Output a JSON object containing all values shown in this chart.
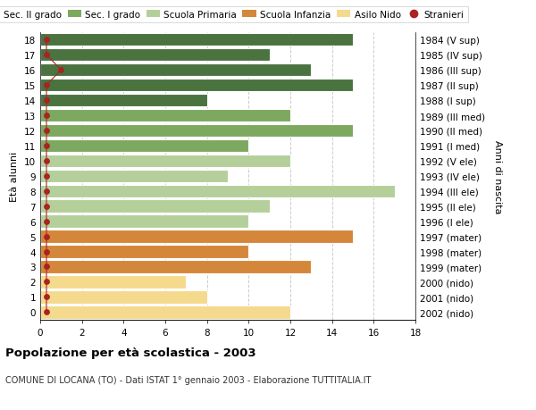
{
  "ages": [
    18,
    17,
    16,
    15,
    14,
    13,
    12,
    11,
    10,
    9,
    8,
    7,
    6,
    5,
    4,
    3,
    2,
    1,
    0
  ],
  "values": [
    15,
    11,
    13,
    15,
    8,
    12,
    15,
    10,
    12,
    9,
    17,
    11,
    10,
    15,
    10,
    13,
    7,
    8,
    12
  ],
  "right_labels": [
    "1984 (V sup)",
    "1985 (IV sup)",
    "1986 (III sup)",
    "1987 (II sup)",
    "1988 (I sup)",
    "1989 (III med)",
    "1990 (II med)",
    "1991 (I med)",
    "1992 (V ele)",
    "1993 (IV ele)",
    "1994 (III ele)",
    "1995 (II ele)",
    "1996 (I ele)",
    "1997 (mater)",
    "1998 (mater)",
    "1999 (mater)",
    "2000 (nido)",
    "2001 (nido)",
    "2002 (nido)"
  ],
  "bar_colors": [
    "#4a7340",
    "#4a7340",
    "#4a7340",
    "#4a7340",
    "#4a7340",
    "#7da860",
    "#7da860",
    "#7da860",
    "#b5cf9a",
    "#b5cf9a",
    "#b5cf9a",
    "#b5cf9a",
    "#b5cf9a",
    "#d4873a",
    "#d4873a",
    "#d4873a",
    "#f5d98c",
    "#f5d98c",
    "#f5d98c"
  ],
  "stranieri_x": [
    0.3,
    0.3,
    1.0,
    0.3,
    0.3,
    0.3,
    0.3,
    0.3,
    0.3,
    0.3,
    0.3,
    0.3,
    0.3,
    0.3,
    0.3,
    0.3,
    0.3,
    0.3,
    0.3
  ],
  "legend_labels": [
    "Sec. II grado",
    "Sec. I grado",
    "Scuola Primaria",
    "Scuola Infanzia",
    "Asilo Nido",
    "Stranieri"
  ],
  "legend_colors": [
    "#4a7340",
    "#7da860",
    "#b5cf9a",
    "#d4873a",
    "#f5d98c",
    "#aa2222"
  ],
  "ylabel_left": "Età alunni",
  "ylabel_right": "Anni di nascita",
  "title": "Popolazione per età scolastica - 2003",
  "subtitle": "COMUNE DI LOCANA (TO) - Dati ISTAT 1° gennaio 2003 - Elaborazione TUTTITALIA.IT",
  "xlim": [
    0,
    18
  ],
  "bg_color": "#ffffff",
  "grid_color": "#cccccc",
  "bar_edge_color": "#ffffff",
  "stranieri_color": "#aa2222"
}
